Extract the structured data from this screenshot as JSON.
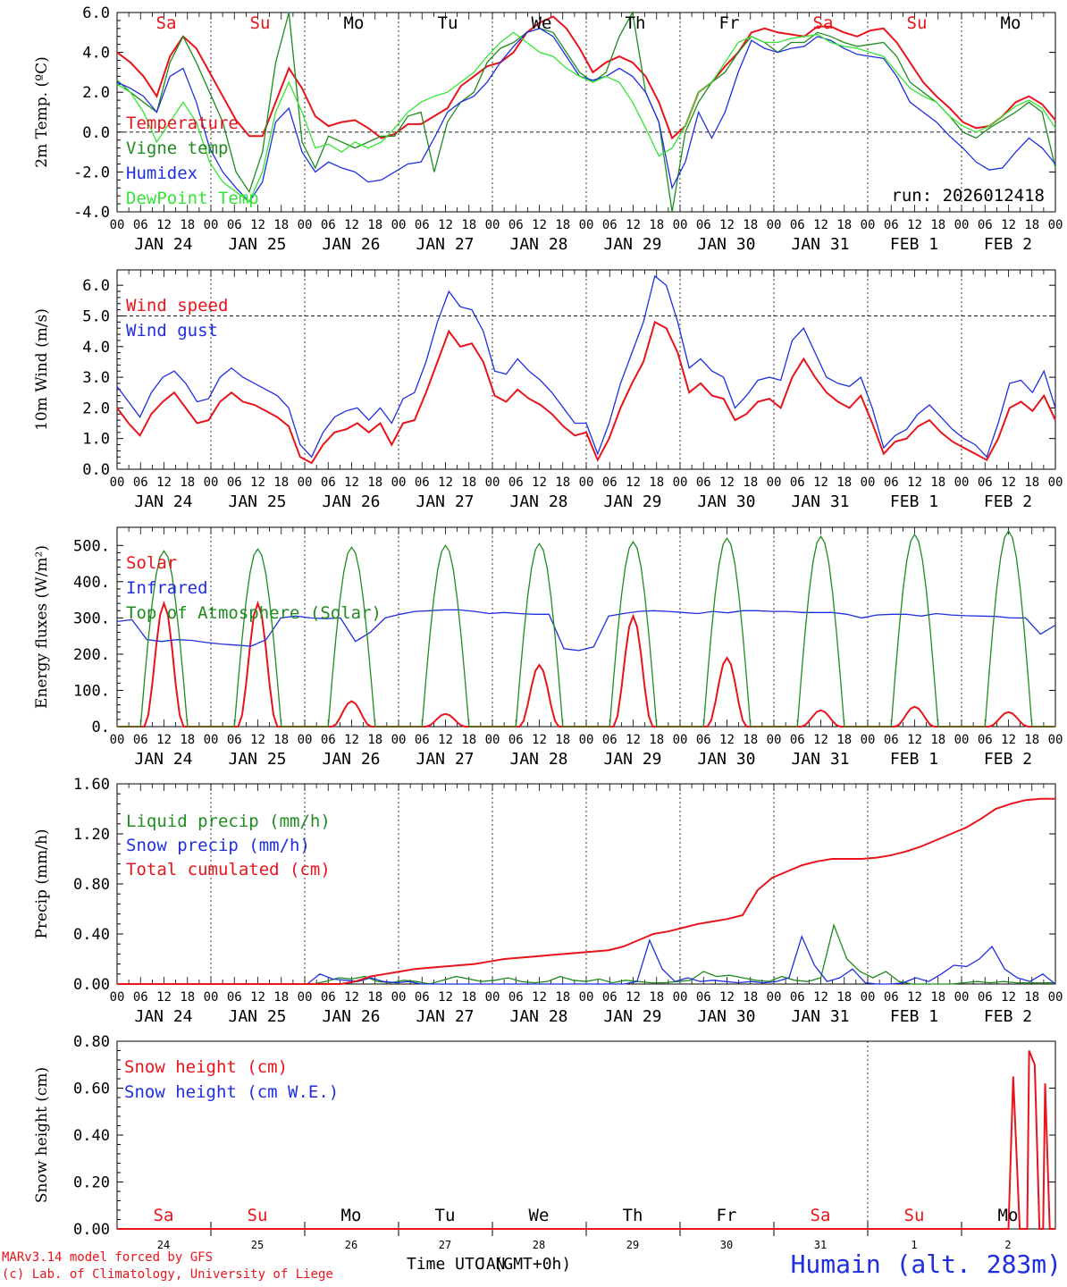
{
  "colors": {
    "red": "#e8141c",
    "green": "#1e8c1e",
    "blue": "#1f2ee0",
    "lightgreen": "#33e633",
    "dayred": "#e8141c",
    "dayblack": "#000000"
  },
  "run_label": "run: 2026012418",
  "footer": {
    "credit1": "MARv3.14 model forced by GFS",
    "credit2": "(c) Lab. of Climatology, University of Liege",
    "xlabel": "Time UTC (GMT+0h)",
    "xlabel_overlay": "JAN",
    "station": "Humain (alt. 283m)"
  },
  "hour_ticks": [
    "00",
    "06",
    "12",
    "18"
  ],
  "date_labels": [
    "JAN 24",
    "JAN 25",
    "JAN 26",
    "JAN 27",
    "JAN 28",
    "JAN 29",
    "JAN 30",
    "JAN 31",
    "FEB  1",
    "FEB  2"
  ],
  "day_names": [
    "Sa",
    "Su",
    "Mo",
    "Tu",
    "We",
    "Th",
    "Fr",
    "Sa",
    "Su",
    "Mo"
  ],
  "day_colors": [
    "red",
    "red",
    "black",
    "black",
    "black",
    "black",
    "black",
    "red",
    "red",
    "black"
  ],
  "bottom_day_numbers": [
    "24",
    "25",
    "26",
    "27",
    "28",
    "29",
    "30",
    "31",
    "1",
    "2"
  ],
  "chart_data": [
    {
      "type": "line",
      "ylabel": "2m Temp. (ºC)",
      "ylim": [
        -4,
        6
      ],
      "yticks": [
        "-4.0",
        "-2.0",
        "0.0",
        "2.0",
        "4.0",
        "6.0"
      ],
      "ytick_values": [
        -4,
        -2,
        0,
        2,
        4,
        6
      ],
      "reference_line": 0,
      "series": [
        {
          "name": "Temperature",
          "color": "red",
          "values": [
            4.0,
            3.5,
            2.8,
            1.8,
            3.8,
            4.8,
            4.2,
            3.0,
            1.8,
            0.6,
            -0.2,
            -0.2,
            1.5,
            3.2,
            2.2,
            0.8,
            0.3,
            0.5,
            0.6,
            0.2,
            -0.3,
            -0.1,
            0.4,
            0.4,
            0.8,
            1.2,
            2.3,
            2.8,
            3.3,
            3.5,
            4.0,
            5.0,
            5.5,
            5.8,
            5.2,
            4.2,
            3.0,
            3.5,
            3.8,
            3.5,
            2.8,
            1.5,
            -0.3,
            0.3,
            2.0,
            2.5,
            3.3,
            4.0,
            5.0,
            5.2,
            5.0,
            4.9,
            4.8,
            5.3,
            5.3,
            5.0,
            4.8,
            5.1,
            5.2,
            4.5,
            3.5,
            2.5,
            1.8,
            1.2,
            0.5,
            0.2,
            0.3,
            0.8,
            1.5,
            1.8,
            1.4,
            0.6
          ]
        },
        {
          "name": "Vigne temp",
          "color": "green",
          "values": [
            2.6,
            2.0,
            1.5,
            1.0,
            3.5,
            4.8,
            3.5,
            2.0,
            0.5,
            -2.0,
            -3.0,
            -1.0,
            3.5,
            6.0,
            -0.5,
            -1.8,
            -0.2,
            -0.5,
            -0.8,
            -0.5,
            -0.2,
            -0.2,
            0.8,
            1.0,
            -2.0,
            0.5,
            1.5,
            2.0,
            3.5,
            4.2,
            4.5,
            5.0,
            5.2,
            5.0,
            4.0,
            3.0,
            2.5,
            3.0,
            4.8,
            6.0,
            2.0,
            0.5,
            -4.0,
            0.0,
            1.5,
            2.5,
            3.0,
            4.0,
            4.8,
            4.5,
            4.0,
            4.5,
            4.5,
            5.0,
            4.8,
            4.5,
            4.3,
            4.4,
            4.5,
            3.8,
            2.5,
            2.0,
            1.5,
            0.8,
            0.0,
            -0.3,
            0.2,
            0.6,
            1.0,
            1.5,
            1.0,
            -1.8
          ]
        },
        {
          "name": "Humidex",
          "color": "blue",
          "values": [
            2.5,
            2.2,
            1.8,
            1.0,
            2.8,
            3.2,
            1.5,
            -0.8,
            -2.0,
            -2.8,
            -3.5,
            -2.5,
            0.5,
            1.2,
            -1.0,
            -2.0,
            -1.5,
            -1.8,
            -2.0,
            -2.5,
            -2.4,
            -2.0,
            -1.6,
            -1.5,
            -0.3,
            1.0,
            1.5,
            1.8,
            2.5,
            3.5,
            4.3,
            5.0,
            5.2,
            4.8,
            3.8,
            2.8,
            2.6,
            2.8,
            3.2,
            2.8,
            2.0,
            0.5,
            -2.8,
            -1.5,
            1.0,
            -0.3,
            1.0,
            3.0,
            4.6,
            4.2,
            4.0,
            4.2,
            4.3,
            4.8,
            4.6,
            4.2,
            3.9,
            3.8,
            3.7,
            2.8,
            1.5,
            1.0,
            0.5,
            -0.2,
            -0.8,
            -1.5,
            -1.9,
            -1.8,
            -1.0,
            -0.3,
            -0.8,
            -1.6
          ]
        },
        {
          "name": "DewPoint Temp",
          "color": "lightgreen",
          "values": [
            2.4,
            2.0,
            1.0,
            -0.5,
            0.5,
            1.5,
            0.5,
            -1.5,
            -2.5,
            -3.0,
            -3.5,
            -2.0,
            1.0,
            2.5,
            1.0,
            -0.8,
            -0.6,
            -1.0,
            -0.5,
            -0.8,
            -0.5,
            0.2,
            1.0,
            1.5,
            1.8,
            2.0,
            2.5,
            3.0,
            3.8,
            4.5,
            5.0,
            4.5,
            4.0,
            3.8,
            3.2,
            2.8,
            2.5,
            2.8,
            2.5,
            1.5,
            0.2,
            -1.2,
            -0.8,
            0.3,
            2.0,
            2.5,
            3.5,
            4.5,
            4.8,
            4.5,
            4.5,
            4.7,
            4.8,
            4.9,
            4.5,
            4.3,
            4.2,
            4.0,
            3.8,
            3.0,
            2.2,
            1.8,
            1.5,
            0.8,
            0.3,
            0.0,
            0.3,
            0.8,
            1.3,
            1.6,
            1.2,
            0.2
          ]
        }
      ]
    },
    {
      "type": "line",
      "ylabel": "10m Wind (m/s)",
      "ylim": [
        0,
        6.5
      ],
      "yticks": [
        "0.0",
        "1.0",
        "2.0",
        "3.0",
        "4.0",
        "5.0",
        "6.0"
      ],
      "ytick_values": [
        0,
        1,
        2,
        3,
        4,
        5,
        6
      ],
      "reference_line": 5,
      "series": [
        {
          "name": "Wind speed",
          "color": "red",
          "values": [
            2.0,
            1.5,
            1.1,
            1.8,
            2.2,
            2.5,
            2.0,
            1.5,
            1.6,
            2.2,
            2.5,
            2.2,
            2.1,
            1.9,
            1.7,
            1.4,
            0.4,
            0.2,
            0.8,
            1.2,
            1.3,
            1.5,
            1.2,
            1.5,
            0.8,
            1.5,
            1.6,
            2.5,
            3.5,
            4.5,
            4.0,
            4.1,
            3.5,
            2.4,
            2.2,
            2.6,
            2.3,
            2.1,
            1.8,
            1.4,
            1.1,
            1.2,
            0.3,
            1.0,
            2.0,
            2.8,
            3.5,
            4.8,
            4.6,
            3.8,
            2.5,
            2.8,
            2.4,
            2.3,
            1.6,
            1.8,
            2.2,
            2.3,
            2.0,
            3.0,
            3.6,
            3.0,
            2.5,
            2.2,
            2.0,
            2.4,
            1.5,
            0.5,
            0.9,
            1.0,
            1.4,
            1.6,
            1.2,
            0.9,
            0.7,
            0.5,
            0.3,
            1.0,
            2.0,
            2.2,
            1.9,
            2.4,
            1.6
          ]
        },
        {
          "name": "Wind gust",
          "color": "blue",
          "values": [
            2.7,
            2.2,
            1.7,
            2.5,
            3.0,
            3.2,
            2.8,
            2.2,
            2.3,
            3.0,
            3.3,
            3.0,
            2.8,
            2.6,
            2.4,
            2.0,
            0.8,
            0.4,
            1.2,
            1.7,
            1.9,
            2.0,
            1.6,
            2.0,
            1.5,
            2.3,
            2.5,
            3.5,
            4.8,
            5.8,
            5.3,
            5.2,
            4.5,
            3.2,
            3.1,
            3.6,
            3.2,
            2.9,
            2.5,
            2.0,
            1.5,
            1.5,
            0.5,
            1.5,
            2.8,
            3.8,
            4.8,
            6.3,
            6.0,
            4.8,
            3.3,
            3.6,
            3.2,
            3.0,
            2.0,
            2.4,
            2.9,
            3.0,
            2.9,
            4.2,
            4.6,
            3.8,
            3.0,
            2.8,
            2.7,
            3.0,
            2.0,
            0.7,
            1.1,
            1.3,
            1.8,
            2.1,
            1.7,
            1.3,
            1.0,
            0.8,
            0.4,
            1.5,
            2.8,
            2.9,
            2.5,
            3.2,
            2.0
          ]
        }
      ]
    },
    {
      "type": "line",
      "ylabel": "Energy fluxes (W/m²)",
      "ylim": [
        0,
        550
      ],
      "yticks": [
        "0.",
        "100.",
        "200.",
        "300.",
        "400.",
        "500."
      ],
      "ytick_values": [
        0,
        100,
        200,
        300,
        400,
        500
      ],
      "series": [
        {
          "name": "Solar",
          "color": "red",
          "day_peaks": [
            340,
            340,
            70,
            35,
            170,
            305,
            190,
            45,
            55,
            40
          ]
        },
        {
          "name": "Infrared",
          "color": "blue",
          "values": [
            290,
            295,
            240,
            235,
            240,
            238,
            232,
            228,
            225,
            222,
            240,
            300,
            305,
            300,
            298,
            300,
            235,
            260,
            300,
            310,
            318,
            320,
            322,
            322,
            318,
            312,
            315,
            312,
            310,
            310,
            215,
            210,
            220,
            305,
            312,
            318,
            320,
            318,
            315,
            312,
            318,
            314,
            320,
            320,
            318,
            318,
            315,
            315,
            315,
            310,
            300,
            308,
            310,
            310,
            305,
            312,
            308,
            306,
            305,
            304,
            300,
            300,
            255,
            280
          ]
        },
        {
          "name": "Top of Atmosphere (Solar)",
          "color": "green",
          "day_peaks": [
            485,
            490,
            495,
            500,
            505,
            510,
            520,
            525,
            530,
            540
          ]
        }
      ]
    },
    {
      "type": "line",
      "ylabel": "Precip (mm/h)",
      "ylim": [
        0,
        1.6
      ],
      "yticks": [
        "0.00",
        "0.40",
        "0.80",
        "1.20",
        "1.60"
      ],
      "ytick_values": [
        0,
        0.4,
        0.8,
        1.2,
        1.6
      ],
      "series": [
        {
          "name": "Liquid precip (mm/h)",
          "color": "green",
          "values": [
            0,
            0,
            0,
            0,
            0,
            0,
            0,
            0,
            0,
            0,
            0,
            0,
            0,
            0,
            0,
            0,
            0.02,
            0.05,
            0.04,
            0.06,
            0.02,
            0.01,
            0.03,
            0.02,
            0,
            0.03,
            0.06,
            0.04,
            0.02,
            0.03,
            0.05,
            0.02,
            0.01,
            0.02,
            0.06,
            0.03,
            0.02,
            0.04,
            0.01,
            0.03,
            0.02,
            0.01,
            0.01,
            0.02,
            0.03,
            0.1,
            0.06,
            0.07,
            0.05,
            0.03,
            0.02,
            0.06,
            0.03,
            0.02,
            0.05,
            0.47,
            0.2,
            0.1,
            0.05,
            0.1,
            0.02,
            0,
            0,
            0,
            0,
            0.01,
            0.02,
            0.01,
            0.02,
            0.01,
            0.01,
            0.01,
            0.01
          ]
        },
        {
          "name": "Snow precip (mm/h)",
          "color": "blue",
          "values": [
            0,
            0,
            0,
            0,
            0,
            0,
            0,
            0,
            0,
            0,
            0,
            0,
            0,
            0,
            0,
            0,
            0.08,
            0.04,
            0.03,
            0.02,
            0.05,
            0.02,
            0.01,
            0.02,
            0,
            0,
            0,
            0,
            0,
            0,
            0,
            0,
            0,
            0,
            0,
            0,
            0,
            0,
            0,
            0,
            0,
            0.02,
            0.35,
            0.12,
            0.02,
            0.05,
            0.02,
            0.03,
            0.02,
            0.01,
            0.02,
            0.01,
            0.02,
            0.05,
            0.38,
            0.15,
            0.02,
            0.05,
            0.12,
            0.01,
            0,
            0,
            0.01,
            0.05,
            0.02,
            0.08,
            0.15,
            0.14,
            0.2,
            0.3,
            0.12,
            0.05,
            0.02,
            0.08,
            0
          ]
        },
        {
          "name": "Total cumulated (cm)",
          "color": "red",
          "values": [
            0,
            0,
            0,
            0,
            0,
            0,
            0,
            0,
            0,
            0,
            0,
            0,
            0,
            0,
            0,
            0,
            0.02,
            0.06,
            0.08,
            0.1,
            0.12,
            0.13,
            0.14,
            0.15,
            0.16,
            0.18,
            0.2,
            0.21,
            0.22,
            0.23,
            0.24,
            0.25,
            0.26,
            0.27,
            0.3,
            0.35,
            0.4,
            0.42,
            0.45,
            0.48,
            0.5,
            0.52,
            0.55,
            0.75,
            0.85,
            0.9,
            0.95,
            0.98,
            1.0,
            1.0,
            1.0,
            1.01,
            1.03,
            1.06,
            1.1,
            1.15,
            1.2,
            1.25,
            1.32,
            1.4,
            1.44,
            1.47,
            1.48,
            1.48
          ]
        }
      ]
    },
    {
      "type": "line",
      "ylabel": "Snow height (cm)",
      "ylim": [
        0,
        0.8
      ],
      "yticks": [
        "0.00",
        "0.20",
        "0.40",
        "0.60",
        "0.80"
      ],
      "ytick_values": [
        0,
        0.2,
        0.4,
        0.6,
        0.8
      ],
      "series": [
        {
          "name": "Snow height (cm)",
          "color": "red",
          "spikes": [
            [
              9.5,
              0.0
            ],
            [
              9.55,
              0.65
            ],
            [
              9.62,
              0.0
            ],
            [
              9.7,
              0.0
            ],
            [
              9.72,
              0.76
            ],
            [
              9.78,
              0.7
            ],
            [
              9.83,
              0.0
            ],
            [
              9.87,
              0.0
            ],
            [
              9.89,
              0.62
            ],
            [
              9.94,
              0.0
            ]
          ]
        },
        {
          "name": "Snow height (cm W.E.)",
          "color": "blue",
          "values": []
        }
      ]
    }
  ]
}
